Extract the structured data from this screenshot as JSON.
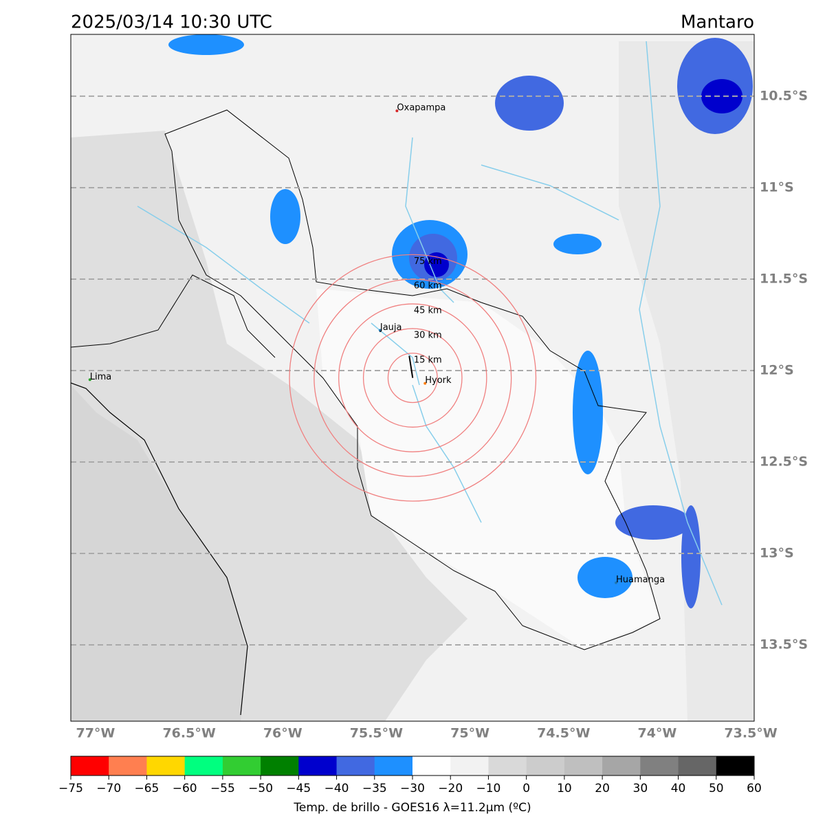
{
  "map": {
    "title": "2025/03/14 10:30 UTC",
    "region": "Mantaro",
    "xlim": [
      -77.132,
      -73.482
    ],
    "ylim": [
      -13.917,
      -10.162
    ],
    "xticks": [
      {
        "value": -77,
        "label": "77°W"
      },
      {
        "value": -76.5,
        "label": "76.5°W"
      },
      {
        "value": -76,
        "label": "76°W"
      },
      {
        "value": -75.5,
        "label": "75.5°W"
      },
      {
        "value": -75,
        "label": "75°W"
      },
      {
        "value": -74.5,
        "label": "74.5°W"
      },
      {
        "value": -74,
        "label": "74°W"
      },
      {
        "value": -73.5,
        "label": "73.5°W"
      }
    ],
    "yticks": [
      {
        "value": -10.5,
        "label": "10.5°S"
      },
      {
        "value": -11,
        "label": "11°S"
      },
      {
        "value": -11.5,
        "label": "11.5°S"
      },
      {
        "value": -12,
        "label": "12°S"
      },
      {
        "value": -12.5,
        "label": "12.5°S"
      },
      {
        "value": -13,
        "label": "13°S"
      },
      {
        "value": -13.5,
        "label": "13.5°S"
      }
    ],
    "grid": true,
    "cities": [
      {
        "name": "Oxapampa",
        "lon": -75.39,
        "lat": -10.58,
        "color": "#d62728"
      },
      {
        "name": "Jauja",
        "lon": -75.48,
        "lat": -11.78,
        "color": "#1f77b4"
      },
      {
        "name": "Lima",
        "lon": -77.03,
        "lat": -12.05,
        "color": "#2ca02c"
      },
      {
        "name": "Hyork",
        "lon": -75.24,
        "lat": -12.07,
        "color": "#ff7f0e"
      },
      {
        "name": "Huamanga",
        "lon": -74.22,
        "lat": -13.16,
        "color": "#1f77b4"
      }
    ],
    "rings": {
      "center_lon": -75.306,
      "center_lat": -12.04,
      "color": "#f08080",
      "radii": [
        {
          "value": 15,
          "label": "15 km"
        },
        {
          "value": 30,
          "label": "30 km"
        },
        {
          "value": 45,
          "label": "45 km"
        },
        {
          "value": 60,
          "label": "60 km"
        },
        {
          "value": 75,
          "label": "75 km"
        }
      ]
    },
    "colorbar": {
      "label": "Temp. de brillo - GOES16 λ=11.2μm (ºC)",
      "ticks": [
        {
          "value": -75,
          "label": "−75"
        },
        {
          "value": -70,
          "label": "−70"
        },
        {
          "value": -65,
          "label": "−65"
        },
        {
          "value": -60,
          "label": "−60"
        },
        {
          "value": -55,
          "label": "−55"
        },
        {
          "value": -50,
          "label": "−50"
        },
        {
          "value": -45,
          "label": "−45"
        },
        {
          "value": -40,
          "label": "−40"
        },
        {
          "value": -35,
          "label": "−35"
        },
        {
          "value": -30,
          "label": "−30"
        },
        {
          "value": -20,
          "label": "−20"
        },
        {
          "value": -10,
          "label": "−10"
        },
        0,
        10,
        20,
        30,
        40,
        50,
        60
      ],
      "colors": [
        "#ff0000",
        "#ff7f50",
        "#ffd700",
        "#00ff7f",
        "#32cd32",
        "#008000",
        "#0000cd",
        "#4169e1",
        "#1e90ff",
        "#ffffff",
        "#f2f2f2",
        "#d9d9d9",
        "#cccccc",
        "#bfbfbf",
        "#a6a6a6",
        "#808080",
        "#666666",
        "#000000"
      ]
    }
  }
}
